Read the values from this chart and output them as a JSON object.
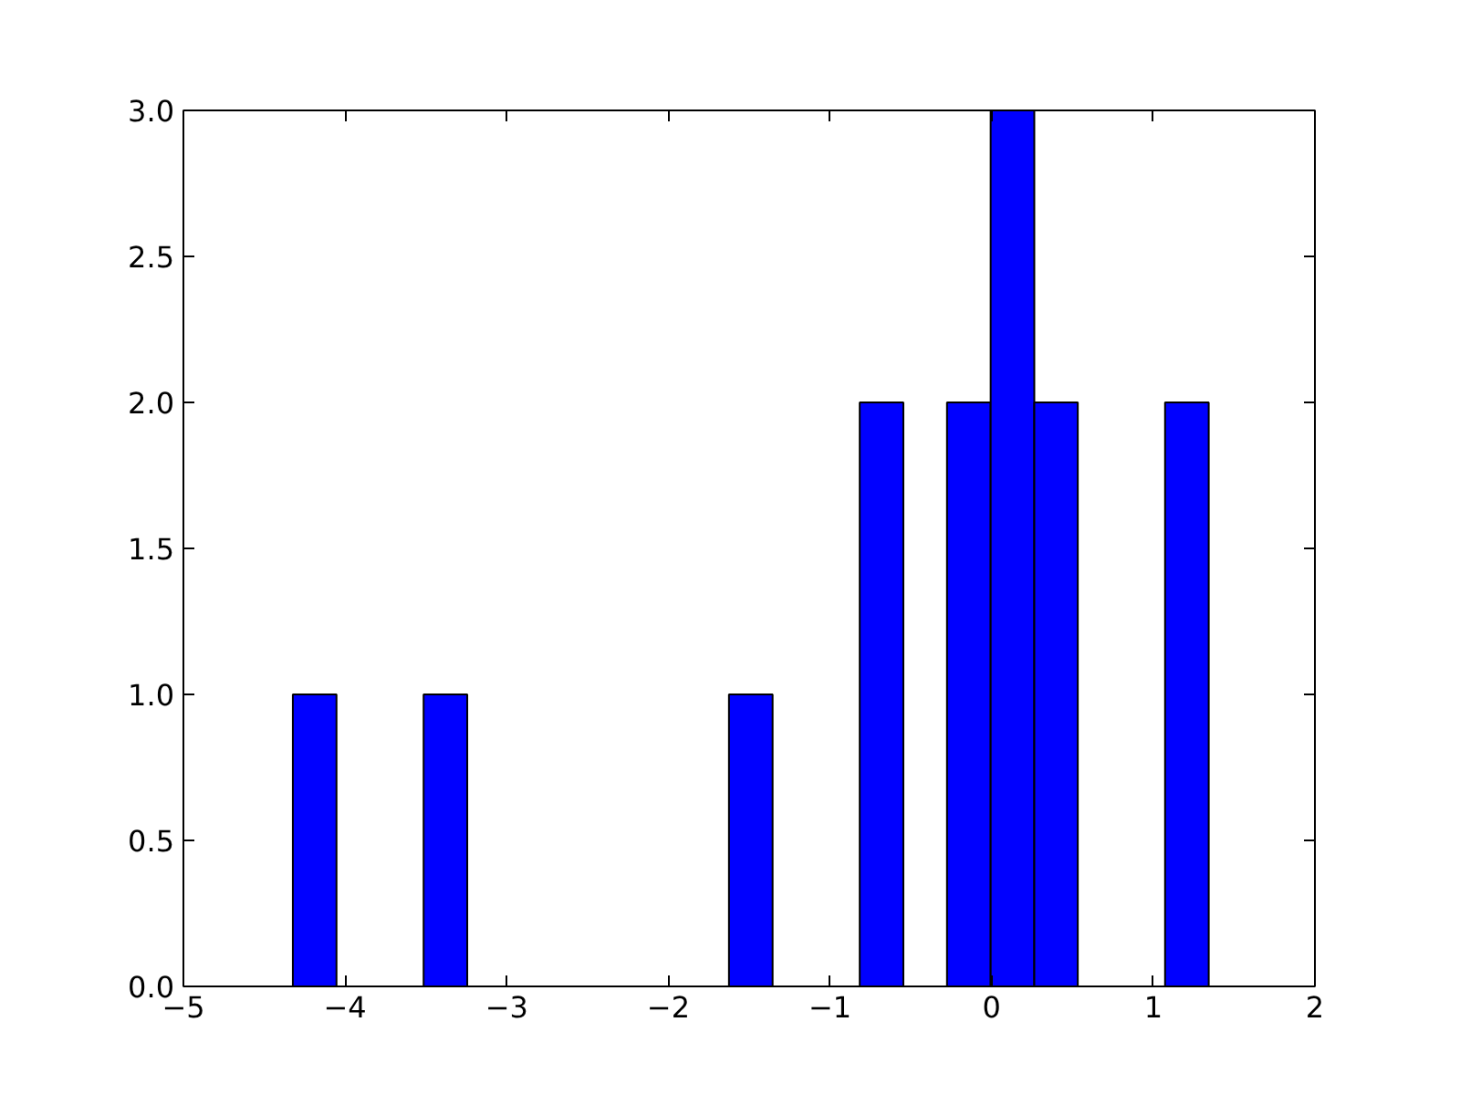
{
  "chart_data": {
    "type": "histogram",
    "bins": [
      -4.323,
      -4.053,
      -3.783,
      -3.514,
      -3.244,
      -2.974,
      -2.704,
      -2.434,
      -2.165,
      -1.895,
      -1.625,
      -1.355,
      -1.086,
      -0.816,
      -0.546,
      -0.276,
      -0.006,
      0.264,
      0.533,
      0.803,
      1.073,
      1.343
    ],
    "values": [
      1,
      0,
      0,
      1,
      0,
      0,
      0,
      0,
      0,
      0,
      1,
      0,
      0,
      2,
      0,
      2,
      3,
      2,
      0,
      0,
      2
    ],
    "color": "#0000ff",
    "xlim": [
      -5,
      2
    ],
    "xticks": [
      {
        "value": -5,
        "label": "−5"
      },
      {
        "value": -4,
        "label": "−4"
      },
      {
        "value": -3,
        "label": "−3"
      },
      {
        "value": -2,
        "label": "−2"
      },
      {
        "value": -1,
        "label": "−1"
      },
      0,
      1,
      2
    ],
    "ylim": [
      0,
      3
    ],
    "yticks": [
      {
        "value": 0,
        "label": "0.0"
      },
      {
        "value": 0.5,
        "label": "0.5"
      },
      {
        "value": 1,
        "label": "1.0"
      },
      {
        "value": 1.5,
        "label": "1.5"
      },
      {
        "value": 2,
        "label": "2.0"
      },
      {
        "value": 2.5,
        "label": "2.5"
      },
      {
        "value": 3,
        "label": "3.0"
      }
    ],
    "grid": false
  }
}
